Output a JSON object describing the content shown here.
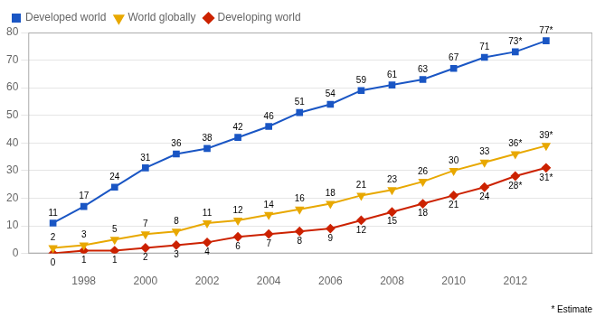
{
  "chart_data": {
    "type": "line",
    "x": [
      1997,
      1998,
      1999,
      2000,
      2001,
      2002,
      2003,
      2004,
      2005,
      2006,
      2007,
      2008,
      2009,
      2010,
      2011,
      2012,
      2013
    ],
    "series": [
      {
        "name": "Developed world",
        "color": "#1a56c4",
        "marker": "square",
        "values": [
          11,
          17,
          24,
          31,
          36,
          38,
          42,
          46,
          51,
          54,
          59,
          61,
          63,
          67,
          71,
          73,
          77
        ],
        "value_labels": [
          "11",
          "17",
          "24",
          "31",
          "36",
          "38",
          "42",
          "46",
          "51",
          "54",
          "59",
          "61",
          "63",
          "67",
          "71",
          "73*",
          "77*"
        ]
      },
      {
        "name": "World globally",
        "color": "#e8a800",
        "marker": "triangle-down",
        "values": [
          2,
          3,
          5,
          7,
          8,
          11,
          12,
          14,
          16,
          18,
          21,
          23,
          26,
          30,
          33,
          36,
          39
        ],
        "value_labels": [
          "2",
          "3",
          "5",
          "7",
          "8",
          "11",
          "12",
          "14",
          "16",
          "18",
          "21",
          "23",
          "26",
          "30",
          "33",
          "36*",
          "39*"
        ]
      },
      {
        "name": "Developing world",
        "color": "#cc2200",
        "marker": "diamond",
        "values": [
          0,
          1,
          1,
          2,
          3,
          4,
          6,
          7,
          8,
          9,
          12,
          15,
          18,
          21,
          24,
          28,
          31
        ],
        "value_labels": [
          "0",
          "1",
          "1",
          "2",
          "3",
          "4",
          "6",
          "7",
          "8",
          "9",
          "12",
          "15",
          "18",
          "21",
          "24",
          "28*",
          "31*"
        ]
      }
    ],
    "xlim": [
      1996.2,
      2014.5
    ],
    "xticks": [
      1998,
      2000,
      2002,
      2004,
      2006,
      2008,
      2010,
      2012
    ],
    "ylim": [
      0,
      80
    ],
    "yticks": [
      0,
      10,
      20,
      30,
      40,
      50,
      60,
      70,
      80
    ],
    "grid": "y",
    "legend": "upper left",
    "data_labels": true,
    "annotations": [
      "* Estimate"
    ]
  }
}
